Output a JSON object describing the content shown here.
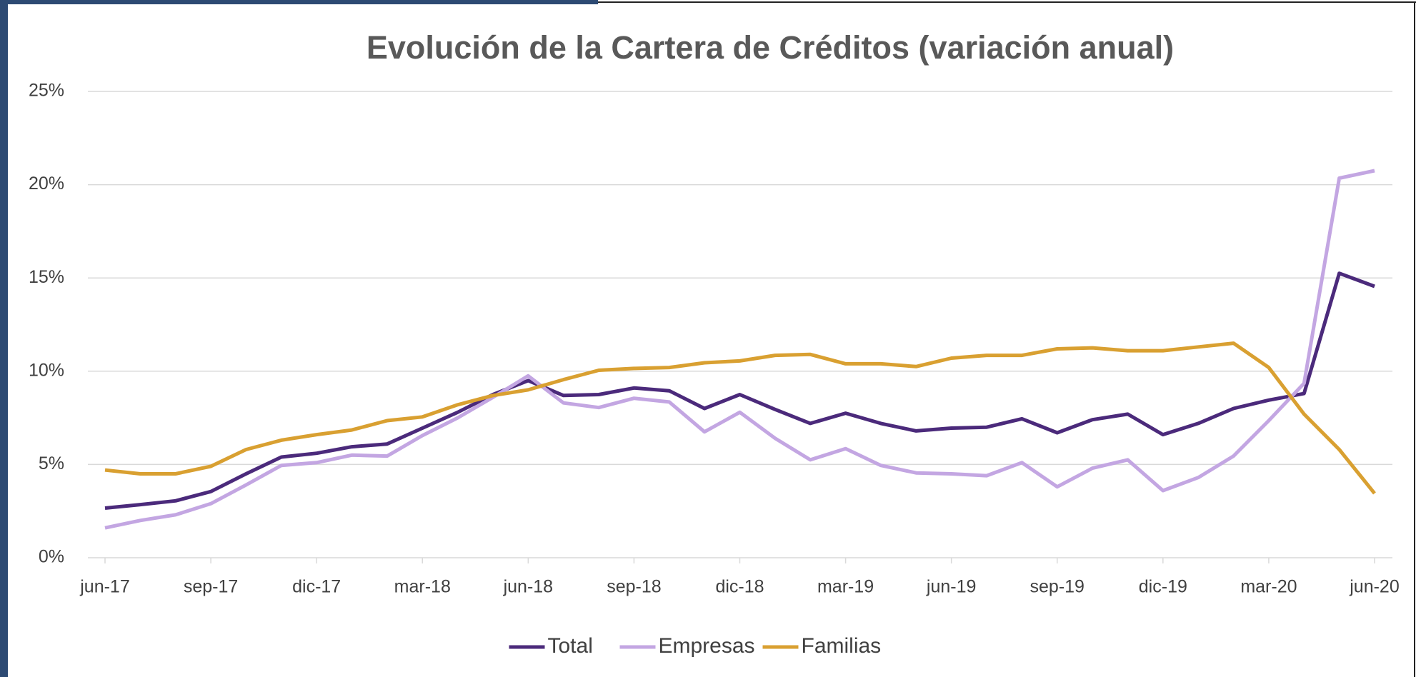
{
  "chart_data": {
    "type": "line",
    "title": "Evolución de la Cartera de Créditos (variación anual)",
    "categories": [
      "jun-17",
      null,
      null,
      "sep-17",
      null,
      null,
      "dic-17",
      null,
      null,
      "mar-18",
      null,
      null,
      "jun-18",
      null,
      null,
      "sep-18",
      null,
      null,
      "dic-18",
      null,
      null,
      "mar-19",
      null,
      null,
      "jun-19",
      null,
      null,
      "sep-19",
      null,
      null,
      "dic-19",
      null,
      null,
      "mar-20",
      null,
      null,
      "jun-20"
    ],
    "series": [
      {
        "name": "Total",
        "color": "#4b2a7b",
        "values": [
          2.66,
          2.85,
          3.05,
          3.55,
          4.5,
          5.4,
          5.6,
          5.95,
          6.1,
          6.95,
          7.8,
          8.75,
          9.5,
          8.7,
          8.75,
          9.1,
          8.95,
          8.0,
          8.75,
          7.95,
          7.2,
          7.75,
          7.2,
          6.8,
          6.95,
          7.0,
          7.45,
          6.7,
          7.4,
          7.7,
          6.6,
          7.2,
          8.0,
          8.45,
          8.8,
          15.25,
          14.55
        ]
      },
      {
        "name": "Empresas",
        "color": "#c3a6e2",
        "values": [
          1.6,
          2.0,
          2.3,
          2.9,
          3.9,
          4.95,
          5.1,
          5.5,
          5.45,
          6.55,
          7.5,
          8.6,
          9.75,
          8.3,
          8.05,
          8.55,
          8.35,
          6.75,
          7.8,
          6.4,
          5.25,
          5.85,
          4.95,
          4.55,
          4.5,
          4.4,
          5.1,
          3.8,
          4.8,
          5.25,
          3.6,
          4.3,
          5.45,
          7.35,
          9.35,
          20.35,
          20.75
        ]
      },
      {
        "name": "Familias",
        "color": "#d9a031",
        "values": [
          4.7,
          4.5,
          4.5,
          4.9,
          5.8,
          6.3,
          6.6,
          6.85,
          7.35,
          7.55,
          8.2,
          8.7,
          9.0,
          9.55,
          10.05,
          10.15,
          10.2,
          10.45,
          10.55,
          10.85,
          10.9,
          10.4,
          10.4,
          10.25,
          10.7,
          10.85,
          10.85,
          11.2,
          11.25,
          11.1,
          11.1,
          11.3,
          11.5,
          10.2,
          7.7,
          5.8,
          3.45
        ]
      }
    ],
    "ylim": [
      0,
      25
    ],
    "yticks": [
      {
        "value": 0,
        "label": "0%"
      },
      {
        "value": 5,
        "label": "5%"
      },
      {
        "value": 10,
        "label": "10%"
      },
      {
        "value": 15,
        "label": "15%"
      },
      {
        "value": 20,
        "label": "20%"
      },
      {
        "value": 25,
        "label": "25%"
      }
    ],
    "grid": true,
    "legend": "bottom"
  }
}
